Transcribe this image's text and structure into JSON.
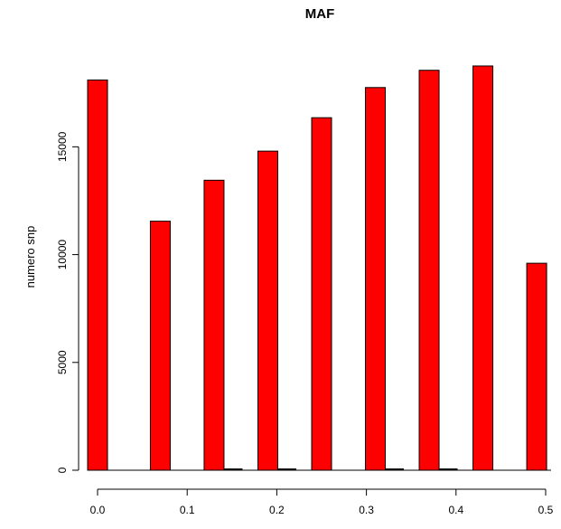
{
  "chart_data": {
    "type": "bar",
    "title": "MAF",
    "xlabel": "",
    "ylabel": "numero snp",
    "xlim": [
      0.0,
      0.5
    ],
    "ylim": [
      0,
      19000
    ],
    "x_ticks": [
      0.0,
      0.1,
      0.2,
      0.3,
      0.4,
      0.5
    ],
    "x_tick_labels": [
      "0.0",
      "0.1",
      "0.2",
      "0.3",
      "0.4",
      "0.5"
    ],
    "y_ticks": [
      0,
      5000,
      10000,
      15000
    ],
    "y_tick_labels": [
      "0",
      "5000",
      "10000",
      "15000"
    ],
    "grid": false,
    "bar_color": "#ff0000",
    "small_bar_color": "#000000",
    "series": [
      {
        "x": [
          0.0,
          0.07,
          0.13,
          0.19,
          0.25,
          0.31,
          0.37,
          0.43,
          0.49
        ],
        "values": [
          18100,
          11550,
          13450,
          14800,
          16350,
          17750,
          18550,
          18750,
          9600
        ]
      },
      {
        "x": [
          0.0,
          0.07,
          0.13,
          0.19,
          0.25,
          0.31,
          0.37,
          0.43,
          0.49
        ],
        "values": [
          0,
          0,
          60,
          60,
          0,
          60,
          60,
          0,
          0
        ]
      }
    ]
  }
}
